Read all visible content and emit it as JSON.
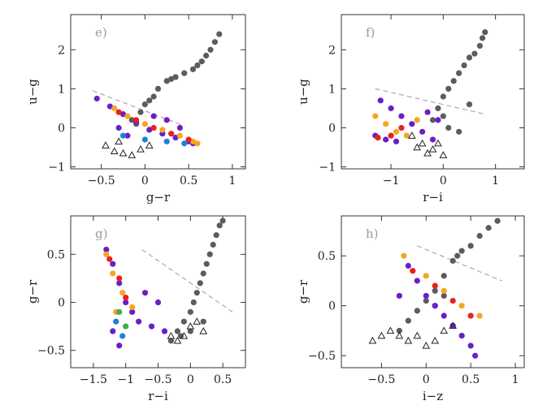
{
  "chart_data": [
    {
      "panel": "e)",
      "type": "scatter",
      "xlabel": "g−r",
      "ylabel": "u−g",
      "xlim": [
        -0.85,
        1.15
      ],
      "ylim": [
        -1.05,
        2.9
      ],
      "xticks": [
        -0.5,
        0,
        0.5,
        1
      ],
      "xticklabels": [
        "−0.5",
        "0",
        "0.5",
        "1"
      ],
      "yticks": [
        -1,
        0,
        1,
        2
      ],
      "yticklabels": [
        "−1",
        "0",
        "1",
        "2"
      ],
      "cut_line": [
        [
          -0.6,
          0.95
        ],
        [
          0.45,
          0.05
        ]
      ],
      "series": [
        {
          "mark": "dot",
          "color": "#5c5c5c",
          "points": [
            [
              -0.15,
              0.2
            ],
            [
              -0.05,
              0.4
            ],
            [
              0.05,
              0.7
            ],
            [
              0.15,
              1.0
            ],
            [
              0.25,
              1.2
            ],
            [
              0.35,
              1.3
            ],
            [
              0.45,
              1.4
            ],
            [
              0.55,
              1.5
            ],
            [
              0.6,
              1.6
            ],
            [
              0.65,
              1.7
            ],
            [
              0.7,
              1.85
            ],
            [
              0.75,
              2.0
            ],
            [
              0.8,
              2.2
            ],
            [
              0.85,
              2.4
            ],
            [
              0.0,
              0.6
            ],
            [
              0.1,
              0.8
            ],
            [
              -0.1,
              0.1
            ],
            [
              0.3,
              1.25
            ]
          ]
        },
        {
          "mark": "dot",
          "color": "#6a1fc9",
          "points": [
            [
              -0.55,
              0.75
            ],
            [
              -0.4,
              0.55
            ],
            [
              -0.25,
              0.35
            ],
            [
              -0.1,
              0.15
            ],
            [
              0.05,
              -0.05
            ],
            [
              0.2,
              -0.15
            ],
            [
              0.35,
              -0.25
            ],
            [
              0.5,
              -0.35
            ],
            [
              0.55,
              -0.4
            ],
            [
              -0.3,
              0.0
            ],
            [
              -0.2,
              -0.2
            ],
            [
              0.1,
              0.3
            ],
            [
              0.25,
              0.2
            ],
            [
              0.4,
              0.0
            ]
          ]
        },
        {
          "mark": "dot",
          "color": "#f5a623",
          "points": [
            [
              -0.35,
              0.5
            ],
            [
              -0.2,
              0.3
            ],
            [
              0.0,
              0.1
            ],
            [
              0.2,
              -0.05
            ],
            [
              0.4,
              -0.2
            ],
            [
              0.55,
              -0.35
            ],
            [
              0.6,
              -0.4
            ]
          ]
        },
        {
          "mark": "dot",
          "color": "#e8211d",
          "points": [
            [
              -0.3,
              0.4
            ],
            [
              -0.1,
              0.2
            ],
            [
              0.1,
              0.0
            ],
            [
              0.3,
              -0.15
            ],
            [
              0.5,
              -0.3
            ]
          ]
        },
        {
          "mark": "dot",
          "color": "#1f7fe0",
          "points": [
            [
              -0.25,
              -0.2
            ],
            [
              0.0,
              -0.3
            ],
            [
              0.25,
              -0.35
            ],
            [
              0.45,
              -0.4
            ]
          ]
        },
        {
          "mark": "triangle",
          "color": "#222222",
          "points": [
            [
              -0.45,
              -0.45
            ],
            [
              -0.35,
              -0.6
            ],
            [
              -0.25,
              -0.65
            ],
            [
              -0.15,
              -0.7
            ],
            [
              -0.05,
              -0.55
            ],
            [
              0.05,
              -0.45
            ],
            [
              -0.3,
              -0.35
            ]
          ]
        }
      ]
    },
    {
      "panel": "f)",
      "type": "scatter",
      "xlabel": "r−i",
      "ylabel": "u−g",
      "xlim": [
        -1.95,
        1.55
      ],
      "ylim": [
        -1.05,
        2.9
      ],
      "xticks": [
        -1,
        0,
        1
      ],
      "xticklabels": [
        "−1",
        "0",
        "1"
      ],
      "yticks": [
        -1,
        0,
        1,
        2
      ],
      "yticklabels": [
        "−1",
        "0",
        "1",
        "2"
      ],
      "cut_line": [
        [
          -1.3,
          1.0
        ],
        [
          0.8,
          0.35
        ]
      ],
      "series": [
        {
          "mark": "dot",
          "color": "#5c5c5c",
          "points": [
            [
              -0.2,
              0.2
            ],
            [
              -0.1,
              0.5
            ],
            [
              0.0,
              0.8
            ],
            [
              0.1,
              1.0
            ],
            [
              0.2,
              1.2
            ],
            [
              0.3,
              1.4
            ],
            [
              0.4,
              1.6
            ],
            [
              0.5,
              1.8
            ],
            [
              0.6,
              1.9
            ],
            [
              0.7,
              2.1
            ],
            [
              0.75,
              2.3
            ],
            [
              0.8,
              2.45
            ],
            [
              0.0,
              0.3
            ],
            [
              0.1,
              0.0
            ],
            [
              0.3,
              -0.1
            ],
            [
              0.5,
              0.6
            ]
          ]
        },
        {
          "mark": "dot",
          "color": "#6a1fc9",
          "points": [
            [
              -1.2,
              0.7
            ],
            [
              -1.0,
              0.5
            ],
            [
              -0.8,
              0.3
            ],
            [
              -0.6,
              0.1
            ],
            [
              -0.4,
              -0.1
            ],
            [
              -0.2,
              -0.3
            ],
            [
              -1.3,
              -0.2
            ],
            [
              -1.1,
              -0.3
            ],
            [
              -0.9,
              -0.35
            ],
            [
              -0.3,
              0.4
            ],
            [
              -0.1,
              0.2
            ]
          ]
        },
        {
          "mark": "dot",
          "color": "#f5a623",
          "points": [
            [
              -1.3,
              0.3
            ],
            [
              -1.1,
              0.1
            ],
            [
              -0.9,
              -0.1
            ],
            [
              -0.7,
              -0.2
            ],
            [
              -0.5,
              0.2
            ]
          ]
        },
        {
          "mark": "dot",
          "color": "#e8211d",
          "points": [
            [
              -1.25,
              -0.25
            ],
            [
              -1.0,
              -0.2
            ],
            [
              -0.8,
              0.0
            ]
          ]
        },
        {
          "mark": "triangle",
          "color": "#222222",
          "points": [
            [
              -0.6,
              -0.2
            ],
            [
              -0.4,
              -0.4
            ],
            [
              -0.2,
              -0.55
            ],
            [
              0.0,
              -0.7
            ],
            [
              -0.5,
              -0.5
            ],
            [
              -0.3,
              -0.65
            ],
            [
              -0.1,
              -0.4
            ]
          ]
        }
      ]
    },
    {
      "panel": "g)",
      "type": "scatter",
      "xlabel": "r−i",
      "ylabel": "g−r",
      "xlim": [
        -1.85,
        0.85
      ],
      "ylim": [
        -0.68,
        0.9
      ],
      "xticks": [
        -1.5,
        -1,
        -0.5,
        0,
        0.5
      ],
      "xticklabels": [
        "−1.5",
        "−1",
        "−0.5",
        "0",
        "0.5"
      ],
      "yticks": [
        -0.5,
        0,
        0.5
      ],
      "yticklabels": [
        "−0.5",
        "0",
        "0.5"
      ],
      "cut_line": [
        [
          -0.75,
          0.55
        ],
        [
          0.65,
          -0.1
        ]
      ],
      "series": [
        {
          "mark": "dot",
          "color": "#5c5c5c",
          "points": [
            [
              -0.3,
              -0.4
            ],
            [
              -0.2,
              -0.3
            ],
            [
              -0.1,
              -0.2
            ],
            [
              0.0,
              -0.1
            ],
            [
              0.05,
              0.0
            ],
            [
              0.1,
              0.1
            ],
            [
              0.15,
              0.2
            ],
            [
              0.2,
              0.3
            ],
            [
              0.25,
              0.4
            ],
            [
              0.3,
              0.5
            ],
            [
              0.35,
              0.6
            ],
            [
              0.4,
              0.7
            ],
            [
              0.45,
              0.8
            ],
            [
              0.5,
              0.85
            ],
            [
              -0.15,
              -0.35
            ],
            [
              0.0,
              -0.3
            ],
            [
              0.2,
              -0.2
            ]
          ]
        },
        {
          "mark": "dot",
          "color": "#6a1fc9",
          "points": [
            [
              -1.3,
              0.55
            ],
            [
              -1.2,
              0.4
            ],
            [
              -1.1,
              0.2
            ],
            [
              -1.0,
              0.0
            ],
            [
              -0.9,
              -0.1
            ],
            [
              -0.8,
              -0.2
            ],
            [
              -0.6,
              -0.25
            ],
            [
              -0.4,
              -0.3
            ],
            [
              -1.2,
              -0.3
            ],
            [
              -1.1,
              -0.45
            ],
            [
              -0.7,
              0.1
            ],
            [
              -0.5,
              0.0
            ]
          ]
        },
        {
          "mark": "dot",
          "color": "#f5a623",
          "points": [
            [
              -1.3,
              0.5
            ],
            [
              -1.2,
              0.3
            ],
            [
              -1.05,
              0.1
            ],
            [
              -0.9,
              -0.05
            ],
            [
              -1.15,
              -0.1
            ]
          ]
        },
        {
          "mark": "dot",
          "color": "#e8211d",
          "points": [
            [
              -1.25,
              0.45
            ],
            [
              -1.1,
              0.25
            ],
            [
              -1.0,
              0.05
            ]
          ]
        },
        {
          "mark": "dot",
          "color": "#1f7fe0",
          "points": [
            [
              -1.15,
              -0.2
            ],
            [
              -1.05,
              -0.35
            ]
          ]
        },
        {
          "mark": "dot",
          "color": "#3cb043",
          "points": [
            [
              -1.1,
              -0.1
            ],
            [
              -1.0,
              -0.25
            ]
          ]
        },
        {
          "mark": "triangle",
          "color": "#222222",
          "points": [
            [
              -0.3,
              -0.35
            ],
            [
              -0.2,
              -0.4
            ],
            [
              -0.1,
              -0.35
            ],
            [
              0.0,
              -0.25
            ],
            [
              0.1,
              -0.2
            ],
            [
              0.2,
              -0.3
            ]
          ]
        }
      ]
    },
    {
      "panel": "h)",
      "type": "scatter",
      "xlabel": "i−z",
      "ylabel": "g−r",
      "xlim": [
        -0.95,
        1.1
      ],
      "ylim": [
        -0.62,
        0.9
      ],
      "xticks": [
        -0.5,
        0,
        0.5,
        1
      ],
      "xticklabels": [
        "−0.5",
        "0",
        "0.5",
        "1"
      ],
      "yticks": [
        -0.5,
        0,
        0.5
      ],
      "yticklabels": [
        "−0.5",
        "0",
        "0.5"
      ],
      "cut_line": [
        [
          -0.1,
          0.6
        ],
        [
          0.85,
          0.25
        ]
      ],
      "series": [
        {
          "mark": "dot",
          "color": "#5c5c5c",
          "points": [
            [
              -0.3,
              -0.25
            ],
            [
              -0.2,
              -0.15
            ],
            [
              -0.1,
              -0.05
            ],
            [
              0.0,
              0.05
            ],
            [
              0.1,
              0.15
            ],
            [
              0.2,
              0.3
            ],
            [
              0.3,
              0.45
            ],
            [
              0.4,
              0.55
            ],
            [
              0.5,
              0.6
            ],
            [
              0.6,
              0.7
            ],
            [
              0.7,
              0.78
            ],
            [
              0.8,
              0.85
            ],
            [
              0.1,
              0.0
            ],
            [
              0.2,
              0.1
            ],
            [
              0.35,
              0.5
            ]
          ]
        },
        {
          "mark": "dot",
          "color": "#6a1fc9",
          "points": [
            [
              -0.2,
              0.4
            ],
            [
              -0.1,
              0.25
            ],
            [
              0.0,
              0.1
            ],
            [
              0.1,
              0.0
            ],
            [
              0.2,
              -0.1
            ],
            [
              0.3,
              -0.2
            ],
            [
              0.4,
              -0.3
            ],
            [
              0.5,
              -0.4
            ],
            [
              0.55,
              -0.5
            ],
            [
              -0.3,
              0.1
            ]
          ]
        },
        {
          "mark": "dot",
          "color": "#f5a623",
          "points": [
            [
              -0.25,
              0.5
            ],
            [
              0.0,
              0.3
            ],
            [
              0.2,
              0.15
            ],
            [
              0.4,
              0.0
            ],
            [
              0.6,
              -0.1
            ]
          ]
        },
        {
          "mark": "dot",
          "color": "#e8211d",
          "points": [
            [
              -0.15,
              0.35
            ],
            [
              0.1,
              0.2
            ],
            [
              0.3,
              0.05
            ],
            [
              0.5,
              -0.1
            ]
          ]
        },
        {
          "mark": "triangle",
          "color": "#222222",
          "points": [
            [
              -0.6,
              -0.35
            ],
            [
              -0.5,
              -0.3
            ],
            [
              -0.4,
              -0.25
            ],
            [
              -0.3,
              -0.3
            ],
            [
              -0.2,
              -0.35
            ],
            [
              -0.1,
              -0.3
            ],
            [
              0.0,
              -0.4
            ],
            [
              0.1,
              -0.35
            ],
            [
              0.2,
              -0.25
            ],
            [
              0.3,
              -0.2
            ]
          ]
        }
      ]
    }
  ]
}
